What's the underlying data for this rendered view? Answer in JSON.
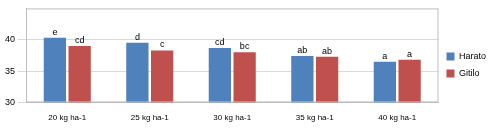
{
  "chart_data": {
    "type": "bar",
    "categories": [
      "20 kg ha-1",
      "25 kg ha-1",
      "30 kg ha-1",
      "35 kg ha-1",
      "40 kg ha-1"
    ],
    "series": [
      {
        "name": "Harato",
        "color": "#4f81bd",
        "values": [
          40.3,
          39.5,
          38.7,
          37.4,
          36.5
        ],
        "annotations": [
          "e",
          "d",
          "cd",
          "ab",
          "a"
        ]
      },
      {
        "name": "Gitilo",
        "color": "#c0504d",
        "values": [
          39.0,
          38.3,
          38.0,
          37.3,
          36.8
        ],
        "annotations": [
          "cd",
          "c",
          "bc",
          "ab",
          "a"
        ]
      }
    ],
    "ylim": [
      30,
      45
    ],
    "yticks": [
      30,
      35,
      40
    ],
    "grid": true,
    "legend": "right"
  }
}
